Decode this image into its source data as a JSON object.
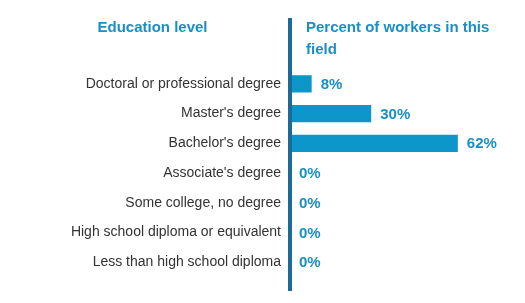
{
  "chart_data": {
    "type": "bar",
    "orientation": "horizontal",
    "ylabel": "Education level",
    "xlabel": "Percent of workers in this field",
    "categories": [
      "Doctoral or professional degree",
      "Master's degree",
      "Bachelor's degree",
      "Associate's degree",
      "Some college, no degree",
      "High school diploma or equivalent",
      "Less than high school diploma"
    ],
    "values": [
      8,
      30,
      62,
      0,
      0,
      0,
      0
    ],
    "value_labels": [
      "8%",
      "30%",
      "62%",
      "0%",
      "0%",
      "0%",
      "0%"
    ],
    "color": "#0c96c9",
    "data_labels": true,
    "tick_labels": "y",
    "grid": false
  }
}
